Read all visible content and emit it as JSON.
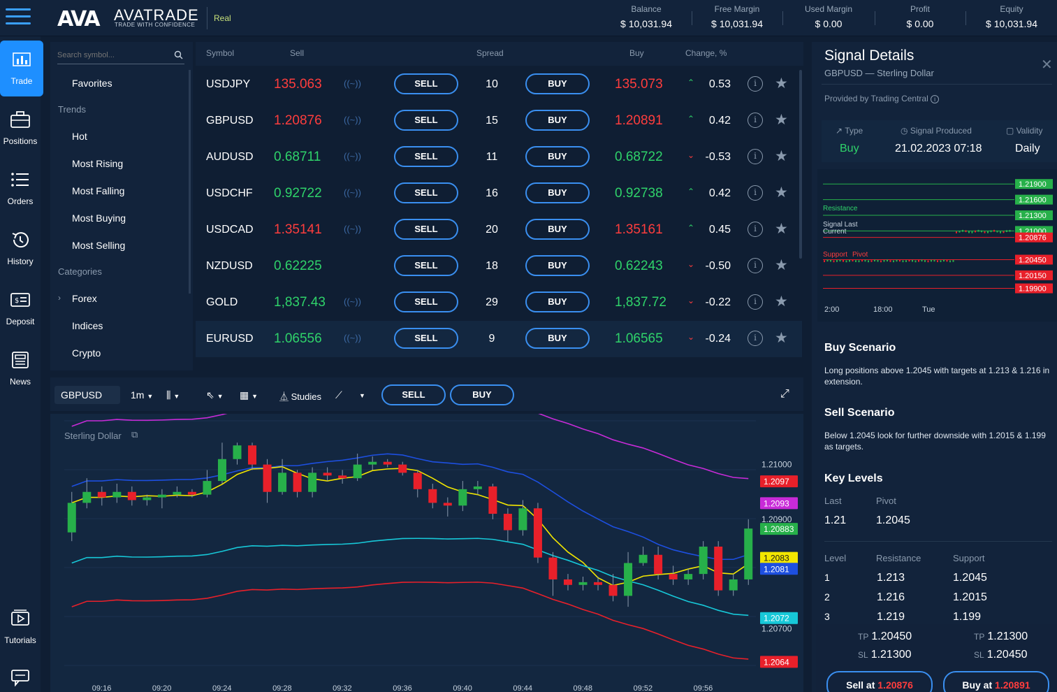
{
  "app": {
    "logo_mark": "AVA",
    "logo_name": "AVATRADE",
    "logo_tagline": "TRADE WITH CONFIDENCE",
    "account_type": "Real"
  },
  "account": [
    {
      "label": "Balance",
      "value": "$ 10,031.94"
    },
    {
      "label": "Free Margin",
      "value": "$ 10,031.94"
    },
    {
      "label": "Used Margin",
      "value": "$ 0.00"
    },
    {
      "label": "Profit",
      "value": "$ 0.00"
    },
    {
      "label": "Equity",
      "value": "$ 10,031.94"
    }
  ],
  "nav": [
    {
      "label": "Trade",
      "icon": "bar-chart-icon",
      "active": true
    },
    {
      "label": "Positions",
      "icon": "briefcase-icon"
    },
    {
      "label": "Orders",
      "icon": "list-icon"
    },
    {
      "label": "History",
      "icon": "history-icon"
    },
    {
      "label": "Deposit",
      "icon": "deposit-icon"
    },
    {
      "label": "News",
      "icon": "news-icon"
    },
    {
      "label": "Tutorials",
      "icon": "play-icon"
    }
  ],
  "search": {
    "placeholder": "Search symbol..."
  },
  "categories": {
    "favorites": "Favorites",
    "trends_heading": "Trends",
    "trends": [
      "Hot",
      "Most Rising",
      "Most Falling",
      "Most Buying",
      "Most Selling"
    ],
    "categories_heading": "Categories",
    "items": [
      "Forex",
      "Indices",
      "Crypto"
    ]
  },
  "table": {
    "headers": {
      "symbol": "Symbol",
      "sell": "Sell",
      "spread": "Spread",
      "buy": "Buy",
      "change": "Change, %"
    },
    "wave_glyph": "((~))",
    "sell_label": "SELL",
    "buy_label": "BUY",
    "rows": [
      {
        "symbol": "USDJPY",
        "sell": "135.063",
        "spread": "10",
        "buy": "135.073",
        "change": "0.53",
        "direction": "up",
        "color": "#ff3d3d"
      },
      {
        "symbol": "GBPUSD",
        "sell": "1.20876",
        "spread": "15",
        "buy": "1.20891",
        "change": "0.42",
        "direction": "up",
        "color": "#ff3d3d"
      },
      {
        "symbol": "AUDUSD",
        "sell": "0.68711",
        "spread": "11",
        "buy": "0.68722",
        "change": "-0.53",
        "direction": "down",
        "color": "#2fd36a"
      },
      {
        "symbol": "USDCHF",
        "sell": "0.92722",
        "spread": "16",
        "buy": "0.92738",
        "change": "0.42",
        "direction": "up",
        "color": "#2fd36a"
      },
      {
        "symbol": "USDCAD",
        "sell": "1.35141",
        "spread": "20",
        "buy": "1.35161",
        "change": "0.45",
        "direction": "up",
        "color": "#ff3d3d"
      },
      {
        "symbol": "NZDUSD",
        "sell": "0.62225",
        "spread": "18",
        "buy": "0.62243",
        "change": "-0.50",
        "direction": "down",
        "color": "#2fd36a"
      },
      {
        "symbol": "GOLD",
        "sell": "1,837.43",
        "spread": "29",
        "buy": "1,837.72",
        "change": "-0.22",
        "direction": "down",
        "color": "#2fd36a"
      },
      {
        "symbol": "EURUSD",
        "sell": "1.06556",
        "spread": "9",
        "buy": "1.06565",
        "change": "-0.24",
        "direction": "down",
        "color": "#2fd36a"
      }
    ]
  },
  "chart_toolbar": {
    "symbol": "GBPUSD",
    "timeframe": "1m",
    "studies": "Studies",
    "sell": "SELL",
    "buy": "BUY"
  },
  "chart": {
    "series_label": "Sterling Dollar",
    "price_ticks": [
      "1.21000",
      "1.20900",
      "1.20700"
    ],
    "price_badges": [
      {
        "label": "1.2097",
        "color": "#e8202a"
      },
      {
        "label": "1.2093",
        "color": "#c82bd8"
      },
      {
        "label": "1.20883",
        "color": "#27b04a"
      },
      {
        "label": "1.2083",
        "color": "#f2e600"
      },
      {
        "label": "1.2081",
        "color": "#1d4fe0"
      },
      {
        "label": "1.2072",
        "color": "#17c8d8"
      },
      {
        "label": "1.2064",
        "color": "#e8202a"
      }
    ],
    "time_ticks": [
      "09:16",
      "09:20",
      "09:24",
      "09:28",
      "09:32",
      "09:36",
      "09:40",
      "09:44",
      "09:48",
      "09:52",
      "09:56"
    ]
  },
  "chart_data": {
    "type": "candlestick",
    "title": "Sterling Dollar",
    "symbol": "GBPUSD",
    "interval": "1m",
    "x": [
      "09:14",
      "09:15",
      "09:16",
      "09:17",
      "09:18",
      "09:19",
      "09:20",
      "09:21",
      "09:22",
      "09:23",
      "09:24",
      "09:25",
      "09:26",
      "09:27",
      "09:28",
      "09:29",
      "09:30",
      "09:31",
      "09:32",
      "09:33",
      "09:34",
      "09:35",
      "09:36",
      "09:37",
      "09:38",
      "09:39",
      "09:40",
      "09:41",
      "09:42",
      "09:43",
      "09:44",
      "09:45",
      "09:46",
      "09:47",
      "09:48",
      "09:49",
      "09:50",
      "09:51",
      "09:52",
      "09:53",
      "09:54",
      "09:55",
      "09:56",
      "09:57",
      "09:58",
      "09:59"
    ],
    "series": [
      {
        "name": "GBPUSD",
        "ohlc": [
          [
            1.20876,
            1.2095,
            1.2086,
            1.2093
          ],
          [
            1.2093,
            1.20975,
            1.2092,
            1.2095
          ],
          [
            1.2095,
            1.2096,
            1.20925,
            1.2094
          ],
          [
            1.2094,
            1.20965,
            1.2093,
            1.2095
          ],
          [
            1.2095,
            1.2096,
            1.20925,
            1.20935
          ],
          [
            1.20935,
            1.20945,
            1.20925,
            1.2094
          ],
          [
            1.2094,
            1.20955,
            1.2092,
            1.20945
          ],
          [
            1.20945,
            1.2096,
            1.2094,
            1.2095
          ],
          [
            1.2095,
            1.20955,
            1.2094,
            1.20945
          ],
          [
            1.20945,
            1.2099,
            1.2094,
            1.2097
          ],
          [
            1.2097,
            1.2104,
            1.20965,
            1.2101
          ],
          [
            1.2101,
            1.2104,
            1.21,
            1.21035
          ],
          [
            1.21035,
            1.2104,
            1.2099,
            1.21
          ],
          [
            1.21,
            1.2101,
            1.2093,
            1.2095
          ],
          [
            1.2095,
            1.2101,
            1.20945,
            1.20985
          ],
          [
            1.20985,
            1.2099,
            1.2094,
            1.2095
          ],
          [
            1.2095,
            1.20995,
            1.2094,
            1.20985
          ],
          [
            1.20985,
            1.20995,
            1.2097,
            1.2098
          ],
          [
            1.2098,
            1.2099,
            1.20965,
            1.20975
          ],
          [
            1.20975,
            1.2102,
            1.2097,
            1.21
          ],
          [
            1.21,
            1.21015,
            1.2099,
            1.21005
          ],
          [
            1.21005,
            1.2101,
            1.20995,
            1.21
          ],
          [
            1.21,
            1.21005,
            1.2098,
            1.20985
          ],
          [
            1.20985,
            1.2099,
            1.2094,
            1.20955
          ],
          [
            1.20955,
            1.20965,
            1.2092,
            1.2093
          ],
          [
            1.2093,
            1.2094,
            1.20905,
            1.20925
          ],
          [
            1.20925,
            1.2097,
            1.20915,
            1.20955
          ],
          [
            1.20955,
            1.2097,
            1.20945,
            1.2096
          ],
          [
            1.2096,
            1.20965,
            1.209,
            1.2091
          ],
          [
            1.2091,
            1.2092,
            1.2086,
            1.2088
          ],
          [
            1.2088,
            1.20935,
            1.2087,
            1.2092
          ],
          [
            1.2092,
            1.2093,
            1.2082,
            1.2083
          ],
          [
            1.2083,
            1.2084,
            1.2076,
            1.2079
          ],
          [
            1.2079,
            1.208,
            1.2077,
            1.2078
          ],
          [
            1.2078,
            1.20795,
            1.2077,
            1.20785
          ],
          [
            1.20785,
            1.20795,
            1.2077,
            1.2078
          ],
          [
            1.2078,
            1.208,
            1.2075,
            1.2076
          ],
          [
            1.2076,
            1.2084,
            1.2074,
            1.2082
          ],
          [
            1.2082,
            1.2085,
            1.20815,
            1.20835
          ],
          [
            1.20835,
            1.2085,
            1.2079,
            1.208
          ],
          [
            1.208,
            1.20815,
            1.2078,
            1.2079
          ],
          [
            1.2079,
            1.2081,
            1.2078,
            1.208
          ],
          [
            1.208,
            1.2086,
            1.2079,
            1.2085
          ],
          [
            1.2085,
            1.2086,
            1.2076,
            1.2077
          ],
          [
            1.2077,
            1.208,
            1.2076,
            1.2079
          ],
          [
            1.2079,
            1.209,
            1.2078,
            1.20883
          ]
        ]
      }
    ],
    "ylim": [
      1.2062,
      1.2108
    ]
  },
  "signal": {
    "title": "Signal Details",
    "subtitle": "GBPUSD — Sterling Dollar",
    "provider": "Provided by Trading Central",
    "type_label": "Type",
    "type_value": "Buy",
    "produced_label": "Signal Produced",
    "produced_value": "21.02.2023 07:18",
    "validity_label": "Validity",
    "validity_value": "Daily",
    "mini_chart": {
      "labels": [
        "Resistance",
        "Signal Last",
        "Current",
        "Support",
        "Pivot"
      ],
      "levels": [
        {
          "label": "1.21900",
          "color": "#27b04a"
        },
        {
          "label": "1.21600",
          "color": "#27b04a"
        },
        {
          "label": "1.21300",
          "color": "#27b04a"
        },
        {
          "label": "1.21000",
          "color": "#27b04a"
        },
        {
          "label": "1.20876",
          "color": "#e8202a"
        },
        {
          "label": "1.20450",
          "color": "#e8202a"
        },
        {
          "label": "1.20150",
          "color": "#e8202a"
        },
        {
          "label": "1.19900",
          "color": "#e8202a"
        }
      ],
      "time_ticks": [
        "2:00",
        "18:00",
        "Tue"
      ]
    },
    "buy_title": "Buy Scenario",
    "buy_text": "Long positions above 1.2045 with targets at 1.213 & 1.216 in extension.",
    "sell_title": "Sell Scenario",
    "sell_text": "Below 1.2045 look for further downside with 1.2015 & 1.199 as targets.",
    "key_title": "Key Levels",
    "last_label": "Last",
    "last_value": "1.21",
    "pivot_label": "Pivot",
    "pivot_value": "1.2045",
    "levels_head": {
      "level": "Level",
      "resistance": "Resistance",
      "support": "Support"
    },
    "levels": [
      {
        "level": "1",
        "resistance": "1.213",
        "support": "1.2045"
      },
      {
        "level": "2",
        "resistance": "1.216",
        "support": "1.2015"
      },
      {
        "level": "3",
        "resistance": "1.219",
        "support": "1.199"
      }
    ],
    "tp_sell": "1.20450",
    "sl_sell": "1.21300",
    "tp_buy": "1.21300",
    "sl_buy": "1.20450",
    "tp_label": "TP",
    "sl_label": "SL",
    "sell_at_label": "Sell at",
    "sell_at_value": "1.20876",
    "buy_at_label": "Buy at",
    "buy_at_value": "1.20891"
  }
}
